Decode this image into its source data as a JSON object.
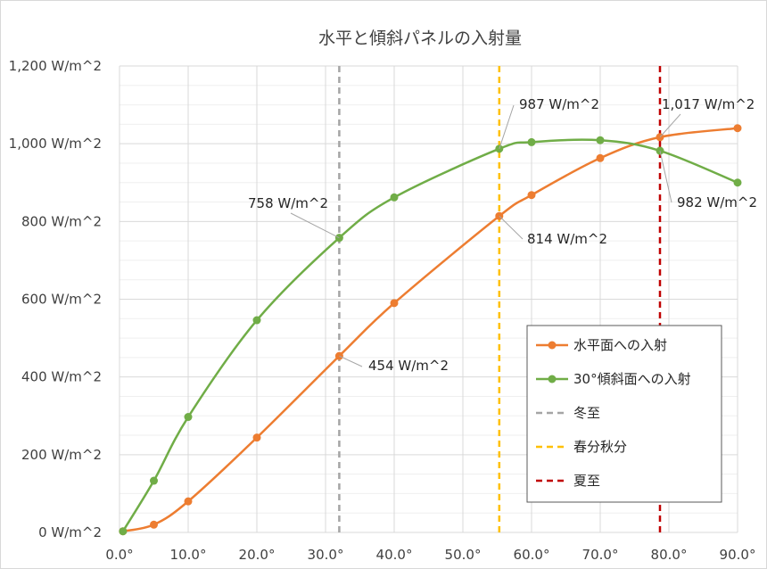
{
  "chart_data": {
    "type": "line",
    "title": "水平と傾斜パネルの入射量",
    "xlabel": "",
    "ylabel": "",
    "xlim": [
      0,
      90
    ],
    "ylim": [
      0,
      1200
    ],
    "x_ticks": [
      0,
      10,
      20,
      30,
      40,
      50,
      60,
      70,
      80,
      90
    ],
    "x_tick_labels": [
      "0.0°",
      "10.0°",
      "20.0°",
      "30.0°",
      "40.0°",
      "50.0°",
      "60.0°",
      "70.0°",
      "80.0°",
      "90.0°"
    ],
    "y_ticks": [
      0,
      200,
      400,
      600,
      800,
      1000,
      1200
    ],
    "y_tick_labels": [
      "0 W/m^2",
      "200 W/m^2",
      "400 W/m^2",
      "600 W/m^2",
      "800 W/m^2",
      "1,000 W/m^2",
      "1,200 W/m^2"
    ],
    "y_minor_step": 50,
    "grid": true,
    "legend_position": "bottom-right",
    "series": [
      {
        "name": "水平面への入射",
        "color": "#ed7d31",
        "x": [
          0.5,
          5,
          10,
          20,
          32,
          40,
          55.3,
          60,
          70,
          78.7,
          90
        ],
        "y": [
          3,
          20,
          80,
          244,
          454,
          590,
          814,
          868,
          963,
          1017,
          1040
        ]
      },
      {
        "name": "30°傾斜面への入射",
        "color": "#70ad47",
        "x": [
          0.5,
          5,
          10,
          20,
          32,
          40,
          55.3,
          60,
          70,
          78.7,
          90
        ],
        "y": [
          3,
          133,
          297,
          546,
          758,
          862,
          987,
          1004,
          1009,
          982,
          900
        ]
      }
    ],
    "reference_lines": [
      {
        "name": "冬至",
        "x": 32,
        "color": "#a5a5a5"
      },
      {
        "name": "春分秋分",
        "x": 55.3,
        "color": "#ffc000"
      },
      {
        "name": "夏至",
        "x": 78.7,
        "color": "#c00000"
      }
    ],
    "annotations": [
      {
        "text": "454 W/m^2",
        "x": 32,
        "y": 454,
        "series": "水平面への入射"
      },
      {
        "text": "758 W/m^2",
        "x": 32,
        "y": 758,
        "series": "30°傾斜面への入射"
      },
      {
        "text": "814 W/m^2",
        "x": 55.3,
        "y": 814,
        "series": "水平面への入射"
      },
      {
        "text": "987 W/m^2",
        "x": 55.3,
        "y": 987,
        "series": "30°傾斜面への入射"
      },
      {
        "text": "1,017 W/m^2",
        "x": 78.7,
        "y": 1017,
        "series": "水平面への入射"
      },
      {
        "text": "982 W/m^2",
        "x": 78.7,
        "y": 982,
        "series": "30°傾斜面への入射"
      }
    ]
  }
}
